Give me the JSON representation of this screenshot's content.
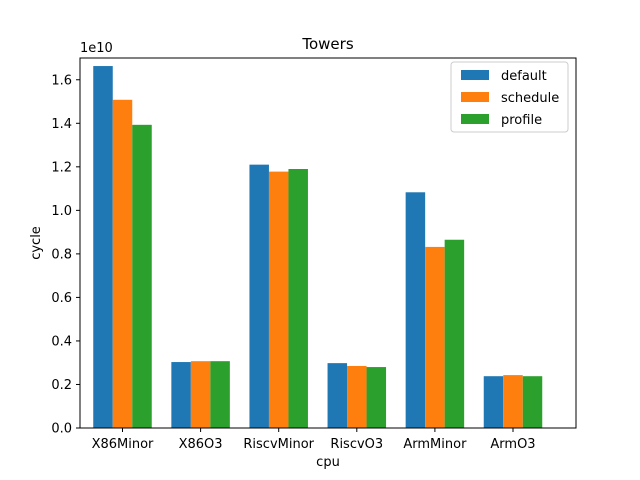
{
  "chart_data": {
    "type": "bar",
    "title": "Towers",
    "xlabel": "cpu",
    "ylabel": "cycle",
    "offset_label": "1e10",
    "categories": [
      "X86Minor",
      "X86O3",
      "RiscvMinor",
      "RiscvO3",
      "ArmMinor",
      "ArmO3"
    ],
    "series": [
      {
        "name": "default",
        "color": "#1f77b4",
        "values": [
          1.663,
          0.303,
          1.21,
          0.298,
          1.083,
          0.238
        ]
      },
      {
        "name": "schedule",
        "color": "#ff7f0e",
        "values": [
          1.508,
          0.307,
          1.178,
          0.285,
          0.832,
          0.243
        ]
      },
      {
        "name": "profile",
        "color": "#2ca02c",
        "values": [
          1.393,
          0.307,
          1.19,
          0.28,
          0.865,
          0.238
        ]
      }
    ],
    "ylim": [
      0,
      1.7
    ],
    "yticks": [
      "0.0",
      "0.2",
      "0.4",
      "0.6",
      "0.8",
      "1.0",
      "1.2",
      "1.4",
      "1.6"
    ],
    "grid": false,
    "legend_position": "top-right"
  }
}
